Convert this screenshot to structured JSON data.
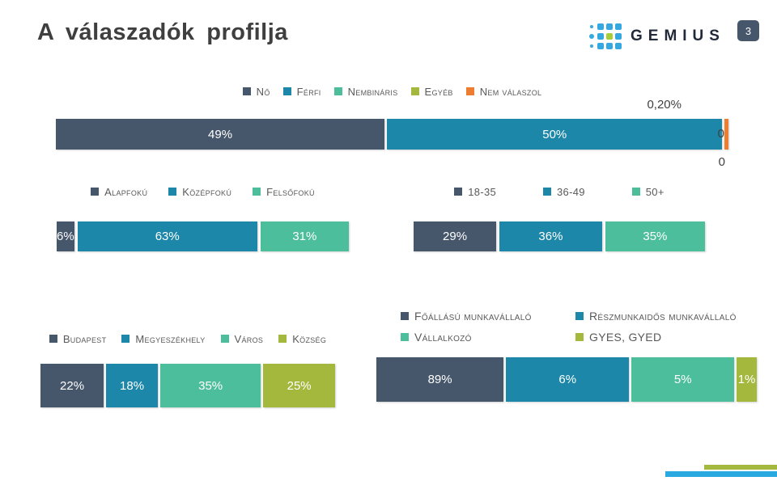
{
  "slide": {
    "title": "A válaszadók profilja",
    "page_number": "3",
    "brand": "GEMIUS"
  },
  "palette": {
    "dark": "#46566B",
    "teal": "#1C87A9",
    "green": "#4CBE9B",
    "olive": "#A3B83C",
    "orange": "#ED7D31",
    "logo_blue": "#35A8E0",
    "logo_green": "#A6CE39",
    "accent_blue": "#29A9E0"
  },
  "chart_data": [
    {
      "id": "gender",
      "type": "bar",
      "stacked": true,
      "orientation": "horizontal",
      "title": "",
      "legend_position": "top",
      "xlim": [
        0,
        100
      ],
      "series": [
        {
          "name": "Nő",
          "value": 49,
          "label": "49%",
          "color": "#46566B",
          "display_pct": 49,
          "show_label": true
        },
        {
          "name": "Férfi",
          "value": 50,
          "label": "50%",
          "color": "#1C87A9",
          "display_pct": 50,
          "show_label": true
        },
        {
          "name": "Nembináris",
          "value": 0,
          "label": "0",
          "color": "#4CBE9B",
          "display_pct": 0,
          "show_label": false
        },
        {
          "name": "Egyéb",
          "value": 0,
          "label": "0",
          "color": "#A3B83C",
          "display_pct": 0,
          "show_label": false
        },
        {
          "name": "Nem válaszol",
          "value": 0.2,
          "label": "0,20%",
          "color": "#ED7D31",
          "display_pct": 0.55,
          "show_label": false
        }
      ],
      "annotations": {
        "above_right": "0,20%",
        "at_end": "0",
        "below_right": "0"
      }
    },
    {
      "id": "education",
      "type": "bar",
      "stacked": true,
      "orientation": "horizontal",
      "title": "",
      "legend_position": "top",
      "xlim": [
        0,
        100
      ],
      "series": [
        {
          "name": "Alapfokú",
          "value": 6,
          "label": "6%",
          "color": "#46566B",
          "display_pct": 6,
          "show_label": true
        },
        {
          "name": "Középfokú",
          "value": 63,
          "label": "63%",
          "color": "#1C87A9",
          "display_pct": 63,
          "show_label": true
        },
        {
          "name": "Felsőfokú",
          "value": 31,
          "label": "31%",
          "color": "#4CBE9B",
          "display_pct": 31,
          "show_label": true
        }
      ]
    },
    {
      "id": "age",
      "type": "bar",
      "stacked": true,
      "orientation": "horizontal",
      "title": "",
      "legend_position": "top",
      "xlim": [
        0,
        100
      ],
      "series": [
        {
          "name": "18-35",
          "value": 29,
          "label": "29%",
          "color": "#46566B",
          "display_pct": 29,
          "show_label": true
        },
        {
          "name": "36-49",
          "value": 36,
          "label": "36%",
          "color": "#1C87A9",
          "display_pct": 36,
          "show_label": true
        },
        {
          "name": "50+",
          "value": 35,
          "label": "35%",
          "color": "#4CBE9B",
          "display_pct": 35,
          "show_label": true
        }
      ]
    },
    {
      "id": "residence",
      "type": "bar",
      "stacked": true,
      "orientation": "horizontal",
      "title": "",
      "legend_position": "top",
      "xlim": [
        0,
        100
      ],
      "series": [
        {
          "name": "Budapest",
          "value": 22,
          "label": "22%",
          "color": "#46566B",
          "display_pct": 22,
          "show_label": true
        },
        {
          "name": "Megyeszékhely",
          "value": 18,
          "label": "18%",
          "color": "#1C87A9",
          "display_pct": 18,
          "show_label": true
        },
        {
          "name": "Város",
          "value": 35,
          "label": "35%",
          "color": "#4CBE9B",
          "display_pct": 35,
          "show_label": true
        },
        {
          "name": "Község",
          "value": 25,
          "label": "25%",
          "color": "#A3B83C",
          "display_pct": 25,
          "show_label": true
        }
      ]
    },
    {
      "id": "employment",
      "type": "bar",
      "stacked": true,
      "orientation": "horizontal",
      "title": "",
      "legend_position": "top",
      "note": "segment widths are not proportional to values in source slide",
      "series": [
        {
          "name": "Főállású munkavállaló",
          "value": 89,
          "label": "89%",
          "color": "#46566B",
          "display_pct": 34.1,
          "show_label": true
        },
        {
          "name": "Részmunkaidős munkavállaló",
          "value": 6,
          "label": "6%",
          "color": "#1C87A9",
          "display_pct": 33.0,
          "show_label": true
        },
        {
          "name": "Vállalkozó",
          "value": 5,
          "label": "5%",
          "color": "#4CBE9B",
          "display_pct": 27.5,
          "show_label": true
        },
        {
          "name": "GYES, GYED",
          "value": 1,
          "label": "1%",
          "color": "#A3B83C",
          "display_pct": 5.4,
          "show_label": true
        }
      ]
    }
  ]
}
